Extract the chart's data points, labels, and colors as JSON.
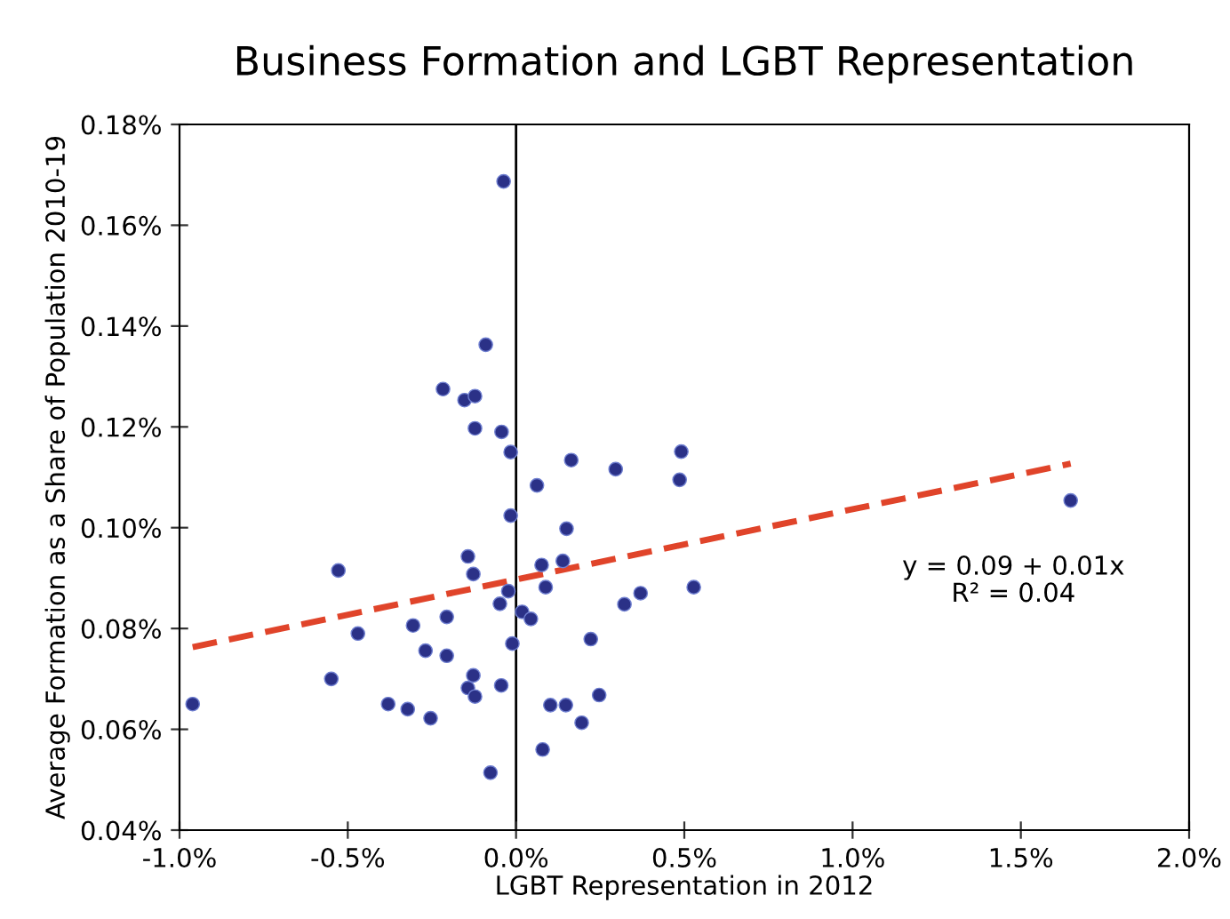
{
  "chart_data": {
    "type": "scatter",
    "title": "Business Formation and LGBT Representation",
    "xlabel": "LGBT Representation in 2012",
    "ylabel": "Average Formation as a Share of Population 2010-19",
    "series": [
      {
        "color": "#2b3187",
        "marker": "circle",
        "x": [
          -0.961,
          -0.549,
          -0.528,
          -0.47,
          -0.38,
          -0.322,
          -0.306,
          -0.269,
          -0.254,
          -0.206,
          -0.206,
          -0.217,
          -0.153,
          -0.122,
          -0.122,
          -0.143,
          -0.127,
          -0.143,
          -0.127,
          -0.122,
          -0.09,
          -0.037,
          -0.043,
          -0.016,
          -0.016,
          0.062,
          0.164,
          0.296,
          0.491,
          0.486,
          0.15,
          0.076,
          0.139,
          -0.023,
          -0.048,
          0.088,
          0.018,
          0.044,
          -0.011,
          0.222,
          0.322,
          0.37,
          0.528,
          -0.044,
          0.247,
          0.102,
          0.148,
          0.195,
          0.079,
          -0.076,
          1.648
        ],
        "values": [
          0.065,
          0.07,
          0.0915,
          0.079,
          0.065,
          0.064,
          0.0806,
          0.0756,
          0.0622,
          0.0823,
          0.0746,
          0.1275,
          0.1253,
          0.1261,
          0.1197,
          0.0943,
          0.0908,
          0.0682,
          0.0707,
          0.0665,
          0.1363,
          0.1687,
          0.119,
          0.115,
          0.1024,
          0.1084,
          0.1134,
          0.1116,
          0.1151,
          0.1095,
          0.0998,
          0.0926,
          0.0934,
          0.0874,
          0.0849,
          0.0882,
          0.0833,
          0.0819,
          0.077,
          0.0779,
          0.0848,
          0.087,
          0.0882,
          0.0687,
          0.0668,
          0.0648,
          0.0648,
          0.0613,
          0.056,
          0.0514,
          0.1054
        ]
      },
      {
        "type": "line",
        "color": "#e0442a",
        "line_style": "dashed",
        "x": [
          -0.961,
          1.648
        ],
        "values": [
          0.0763,
          0.1127
        ]
      }
    ],
    "annotations": [
      "y = 0.09 + 0.01x\nR² = 0.04"
    ],
    "ref_lines": [
      {
        "axis": "x",
        "value": 0,
        "color": "#000000",
        "line_style": "solid"
      }
    ],
    "xlim": [
      -1.0,
      2.0
    ],
    "xticks": [
      {
        "value": -1.0,
        "label": "-1.0%"
      },
      {
        "value": -0.5,
        "label": "-0.5%"
      },
      {
        "value": 0.0,
        "label": "0.0%"
      },
      {
        "value": 0.5,
        "label": "0.5%"
      },
      {
        "value": 1.0,
        "label": "1.0%"
      },
      {
        "value": 1.5,
        "label": "1.5%"
      },
      {
        "value": 2.0,
        "label": "2.0%"
      }
    ],
    "ylim": [
      0.04,
      0.18
    ],
    "yticks": [
      {
        "value": 0.04,
        "label": "0.04%"
      },
      {
        "value": 0.06,
        "label": "0.06%"
      },
      {
        "value": 0.08,
        "label": "0.08%"
      },
      {
        "value": 0.1,
        "label": "0.10%"
      },
      {
        "value": 0.12,
        "label": "0.12%"
      },
      {
        "value": 0.14,
        "label": "0.14%"
      },
      {
        "value": 0.16,
        "label": "0.16%"
      },
      {
        "value": 0.18,
        "label": "0.18%"
      }
    ],
    "grid": false,
    "legend": false
  }
}
